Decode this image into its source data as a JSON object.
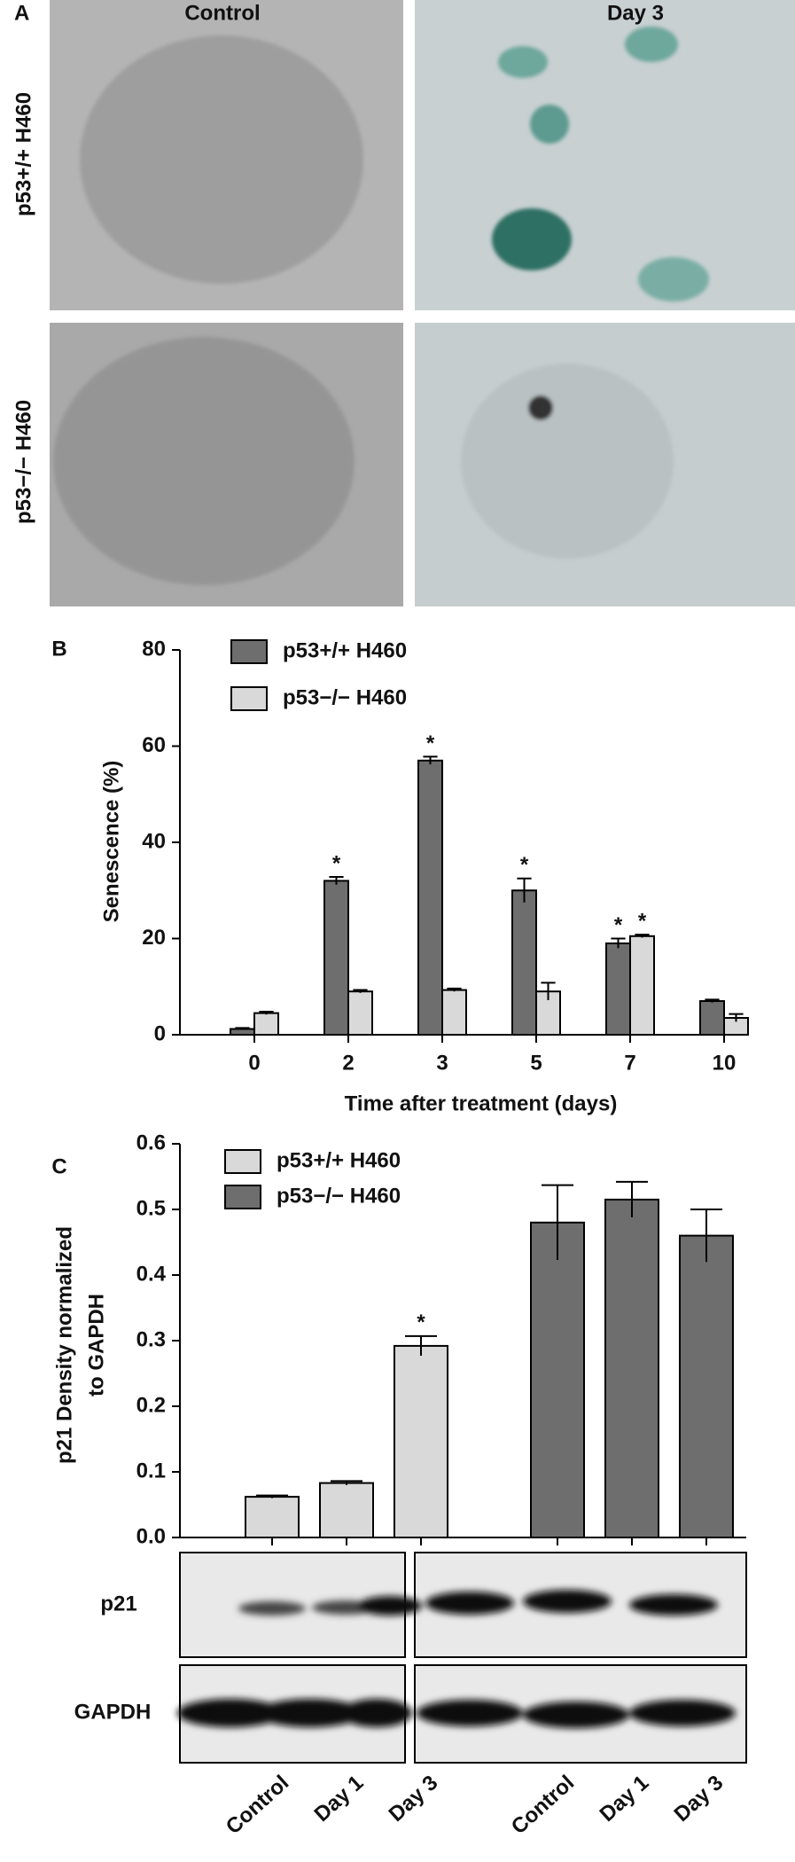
{
  "panel_a": {
    "panel_label": "A",
    "columns": [
      "Control",
      "Day 3"
    ],
    "rows": [
      "p53+/+ H460",
      "p53−/− H460"
    ]
  },
  "chart_data": [
    {
      "type": "bar",
      "panel_label": "B",
      "categories": [
        "0",
        "2",
        "3",
        "5",
        "7",
        "10"
      ],
      "xlabel": "Time after treatment (days)",
      "ylabel": "Senescence (%)",
      "ylim": [
        0,
        80
      ],
      "yticks": [
        0,
        20,
        40,
        60,
        80
      ],
      "series": [
        {
          "name": "p53+/+ H460",
          "color": "#6e6e6e",
          "values": [
            1.2,
            32,
            57,
            30,
            19,
            7
          ],
          "errors": [
            0.2,
            0.8,
            0.8,
            2.5,
            1,
            0.3
          ],
          "significance": [
            null,
            "*",
            "*",
            "*",
            "*",
            null
          ]
        },
        {
          "name": "p53−/− H460",
          "color": "#d9d9d9",
          "values": [
            4.5,
            9,
            9.3,
            9,
            20.5,
            3.5
          ],
          "errors": [
            0.3,
            0.3,
            0.3,
            1.8,
            0.3,
            0.8
          ],
          "significance": [
            null,
            null,
            null,
            null,
            "*",
            null
          ]
        }
      ]
    },
    {
      "type": "bar",
      "panel_label": "C",
      "categories": [
        "Control",
        "Day 1",
        "Day 3",
        "Control",
        "Day 1",
        "Day 3"
      ],
      "ylabel": [
        "p21 Density normalized",
        "to GAPDH"
      ],
      "ylim": [
        0,
        0.6
      ],
      "yticks": [
        {
          "value": 0,
          "label": "0.0"
        },
        0.1,
        0.2,
        0.3,
        0.4,
        0.5,
        0.6
      ],
      "blot_rows": [
        "p21",
        "GAPDH"
      ],
      "series": [
        {
          "name": "p53+/+ H460",
          "color": "#d9d9d9",
          "values": [
            0.062,
            0.083,
            0.292,
            null,
            null,
            null
          ],
          "errors": [
            0.002,
            0.003,
            0.015,
            null,
            null,
            null
          ],
          "significance": [
            null,
            null,
            "*",
            null,
            null,
            null
          ]
        },
        {
          "name": "p53−/− H460",
          "color": "#6e6e6e",
          "values": [
            null,
            null,
            null,
            0.48,
            0.515,
            0.46
          ],
          "errors": [
            null,
            null,
            null,
            0.057,
            0.027,
            0.04
          ],
          "significance": [
            null,
            null,
            null,
            null,
            null,
            null
          ]
        }
      ]
    }
  ]
}
